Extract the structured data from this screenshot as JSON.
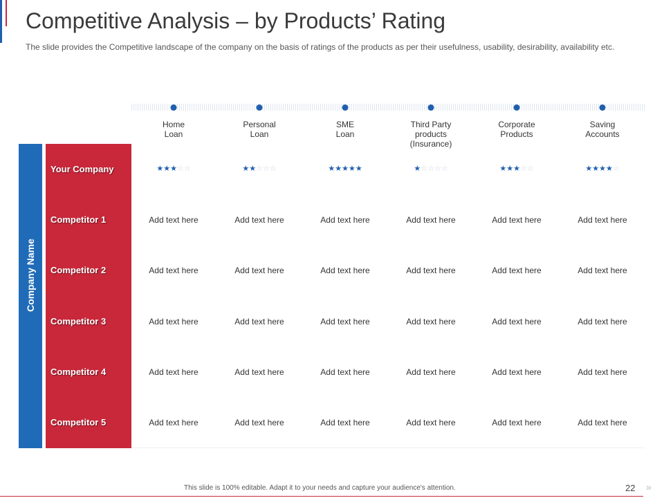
{
  "slide": {
    "title": "Competitive Analysis – by Products’ Rating",
    "subtitle": "The slide provides  the Competitive  landscape of the company on the basis of ratings of the products  as per their usefulness, usability, desirability, availability  etc.",
    "side_label": "Company Name"
  },
  "columns": [
    {
      "label": "Home\nLoan"
    },
    {
      "label": "Personal\nLoan"
    },
    {
      "label": "SME\nLoan"
    },
    {
      "label": "Third Party\nproducts\n(Insurance)"
    },
    {
      "label": "Corporate\nProducts"
    },
    {
      "label": "Saving\nAccounts"
    }
  ],
  "rows": [
    {
      "label": "Your Company",
      "ratings": [
        3,
        2,
        5,
        1,
        3,
        4
      ],
      "max_rating": 5
    },
    {
      "label": "Competitor 1",
      "cells": [
        "Add text here",
        "Add text here",
        "Add text here",
        "Add text here",
        "Add text here",
        "Add text here"
      ]
    },
    {
      "label": "Competitor 2",
      "cells": [
        "Add text here",
        "Add text here",
        "Add text here",
        "Add text here",
        "Add text here",
        "Add text here"
      ]
    },
    {
      "label": "Competitor 3",
      "cells": [
        "Add text here",
        "Add text here",
        "Add text here",
        "Add text here",
        "Add text here",
        "Add text here"
      ]
    },
    {
      "label": "Competitor 4",
      "cells": [
        "Add text here",
        "Add text here",
        "Add text here",
        "Add text here",
        "Add text here",
        "Add text here"
      ]
    },
    {
      "label": "Competitor 5",
      "cells": [
        "Add text here",
        "Add text here",
        "Add text here",
        "Add text here",
        "Add text here",
        "Add text here"
      ]
    }
  ],
  "footer": {
    "note": "This slide is 100% editable.  Adapt it to your needs and capture your audience's attention.",
    "page_number": "22",
    "next_icon": "»"
  },
  "colors": {
    "blue": "#1f6bb8",
    "red": "#c8283a",
    "star": "#1f5fae"
  }
}
